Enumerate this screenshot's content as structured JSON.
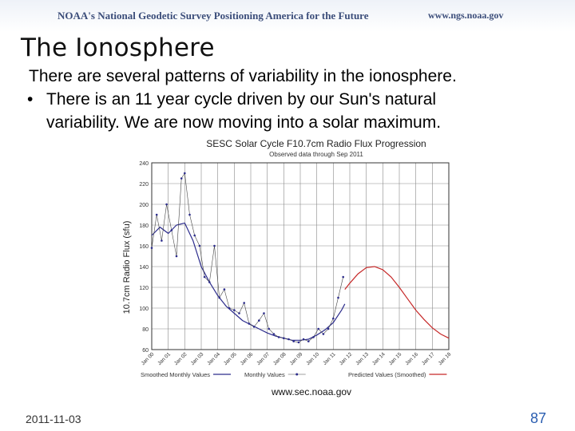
{
  "header": {
    "banner_title": "NOAA's National Geodetic Survey Positioning America for the Future",
    "banner_url": "www.ngs.noaa.gov"
  },
  "slide": {
    "title": "The Ionosphere",
    "line1": "There are several patterns of variability in the ionosphere.",
    "bullet_symbol": "•",
    "line2": "There is an 11 year cycle driven by our Sun's natural",
    "line3": "variability. We are now moving into a solar maximum."
  },
  "figure": {
    "source_url": "www.sec.noaa.gov"
  },
  "footer": {
    "date": "2011-11-03",
    "page": "87"
  },
  "colors": {
    "observed": "#2c2c8c",
    "predicted": "#c62828",
    "grid": "#8a8a8a",
    "text_blue": "#2a5db0"
  },
  "chart_data": {
    "type": "line",
    "title": "SESC Solar Cycle F10.7cm Radio Flux Progression",
    "subtitle": "Observed data through Sep 2011",
    "ylabel": "10.7cm Radio Flux (sfu)",
    "xlabel": "",
    "ylim": [
      60,
      240
    ],
    "yticks": [
      60,
      80,
      100,
      120,
      140,
      160,
      180,
      200,
      220,
      240
    ],
    "xlim": [
      2000,
      2018
    ],
    "xticks": [
      {
        "x": 2000,
        "label": "Jan 00"
      },
      {
        "x": 2001,
        "label": "Jan 01"
      },
      {
        "x": 2002,
        "label": "Jan 02"
      },
      {
        "x": 2003,
        "label": "Jan 03"
      },
      {
        "x": 2004,
        "label": "Jan 04"
      },
      {
        "x": 2005,
        "label": "Jan 05"
      },
      {
        "x": 2006,
        "label": "Jan 06"
      },
      {
        "x": 2007,
        "label": "Jan 07"
      },
      {
        "x": 2008,
        "label": "Jan 08"
      },
      {
        "x": 2009,
        "label": "Jan 09"
      },
      {
        "x": 2010,
        "label": "Jan 10"
      },
      {
        "x": 2011,
        "label": "Jan 11"
      },
      {
        "x": 2012,
        "label": "Jan 12"
      },
      {
        "x": 2013,
        "label": "Jan 13"
      },
      {
        "x": 2014,
        "label": "Jan 14"
      },
      {
        "x": 2015,
        "label": "Jan 15"
      },
      {
        "x": 2016,
        "label": "Jan 16"
      },
      {
        "x": 2017,
        "label": "Jan 17"
      },
      {
        "x": 2018,
        "label": "Jan 18"
      }
    ],
    "grid": true,
    "legend_placement": "bottom",
    "series": [
      {
        "name": "Smoothed Monthly Values",
        "style": "line",
        "x": [
          2000.0,
          2000.5,
          2001.0,
          2001.5,
          2002.0,
          2002.5,
          2003.0,
          2003.5,
          2004.0,
          2004.5,
          2005.0,
          2005.5,
          2006.0,
          2006.5,
          2007.0,
          2007.5,
          2008.0,
          2008.5,
          2009.0,
          2009.5,
          2010.0,
          2010.5,
          2011.0,
          2011.5,
          2011.7
        ],
        "y": [
          170,
          178,
          172,
          180,
          182,
          165,
          140,
          125,
          112,
          102,
          95,
          88,
          84,
          80,
          76,
          73,
          71,
          69,
          69,
          70,
          74,
          79,
          86,
          98,
          104
        ]
      },
      {
        "name": "Monthly Values",
        "style": "markers",
        "x": [
          2000.0,
          2000.3,
          2000.6,
          2000.9,
          2001.2,
          2001.5,
          2001.8,
          2002.0,
          2002.3,
          2002.6,
          2002.9,
          2003.2,
          2003.5,
          2003.8,
          2004.1,
          2004.4,
          2004.7,
          2005.0,
          2005.3,
          2005.6,
          2005.9,
          2006.2,
          2006.5,
          2006.8,
          2007.1,
          2007.4,
          2007.7,
          2008.0,
          2008.3,
          2008.6,
          2008.9,
          2009.2,
          2009.5,
          2009.8,
          2010.1,
          2010.4,
          2010.7,
          2011.0,
          2011.3,
          2011.6
        ],
        "y": [
          158,
          190,
          165,
          200,
          175,
          150,
          225,
          230,
          190,
          170,
          160,
          130,
          125,
          160,
          110,
          118,
          100,
          98,
          95,
          105,
          85,
          82,
          88,
          95,
          80,
          75,
          72,
          71,
          70,
          68,
          67,
          70,
          68,
          72,
          80,
          75,
          80,
          90,
          110,
          130
        ]
      },
      {
        "name": "Predicted Values (Smoothed)",
        "style": "line",
        "x": [
          2011.7,
          2012.0,
          2012.5,
          2013.0,
          2013.5,
          2014.0,
          2014.5,
          2015.0,
          2015.5,
          2016.0,
          2016.5,
          2017.0,
          2017.5,
          2018.0
        ],
        "y": [
          118,
          124,
          133,
          139,
          140,
          137,
          130,
          120,
          109,
          98,
          89,
          81,
          75,
          71
        ]
      }
    ]
  }
}
